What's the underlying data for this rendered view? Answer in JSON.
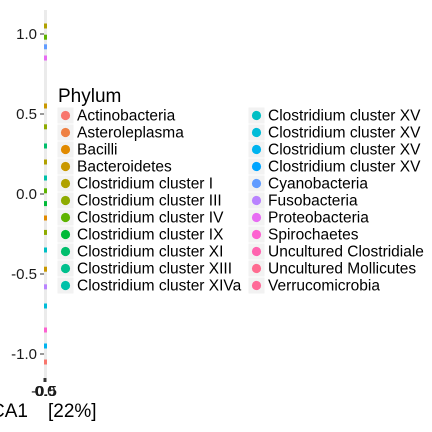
{
  "chart_data": {
    "type": "scatter",
    "x_axis": {
      "title_prefix": "CA1",
      "title_suffix": "[22%]",
      "tick_labels": [
        "-0.5",
        "0.0",
        "0.5"
      ]
    },
    "y_axis": {
      "title": "",
      "ylim": [
        -1.15,
        1.15
      ],
      "ticks": [
        {
          "value": 1.0,
          "label": "1.0"
        },
        {
          "value": 0.5,
          "label": "0.5"
        },
        {
          "value": 0.0,
          "label": "0.0"
        },
        {
          "value": -0.5,
          "label": "-0.5"
        },
        {
          "value": -1.0,
          "label": "-1.0"
        }
      ]
    },
    "legend": {
      "title": "Phylum",
      "position": "right",
      "entries": [
        {
          "label": "Actinobacteria",
          "color": "#F8766D"
        },
        {
          "label": "Asteroleplasma",
          "color": "#EE8043"
        },
        {
          "label": "Bacilli",
          "color": "#E18A00"
        },
        {
          "label": "Bacteroidetes",
          "color": "#C99800"
        },
        {
          "label": "Clostridium cluster I",
          "color": "#B0A100"
        },
        {
          "label": "Clostridium cluster III",
          "color": "#8EAB00"
        },
        {
          "label": "Clostridium cluster IV",
          "color": "#5EB300"
        },
        {
          "label": "Clostridium cluster IX",
          "color": "#00BA38"
        },
        {
          "label": "Clostridium cluster XI",
          "color": "#00BE6C"
        },
        {
          "label": "Clostridium cluster XIII",
          "color": "#00C08D"
        },
        {
          "label": "Clostridium cluster XIVa",
          "color": "#00C1A9"
        },
        {
          "label": "Clostridium cluster XV",
          "color": "#00BFC4"
        },
        {
          "label": "Clostridium cluster XV",
          "color": "#00BCD8"
        },
        {
          "label": "Clostridium cluster XV",
          "color": "#00B4EF"
        },
        {
          "label": "Clostridium cluster XV",
          "color": "#00A5FF"
        },
        {
          "label": "Cyanobacteria",
          "color": "#619CFF"
        },
        {
          "label": "Fusobacteria",
          "color": "#B983FF"
        },
        {
          "label": "Proteobacteria",
          "color": "#E76BF3"
        },
        {
          "label": "Spirochaetes",
          "color": "#FD61D1"
        },
        {
          "label": "Uncultured Clostridiale",
          "color": "#FF64B0"
        },
        {
          "label": "Uncultured Mollicutes",
          "color": "#FF6C91"
        },
        {
          "label": "Verrucomicrobia",
          "color": "#FF6A98"
        }
      ]
    },
    "points": [
      {
        "y": 1.05,
        "color": "#B0A100"
      },
      {
        "y": 0.98,
        "color": "#5EB300"
      },
      {
        "y": 0.92,
        "color": "#619CFF"
      },
      {
        "y": 0.85,
        "color": "#E76BF3"
      },
      {
        "y": 0.55,
        "color": "#C99800"
      },
      {
        "y": 0.42,
        "color": "#8EAB00"
      },
      {
        "y": 0.3,
        "color": "#00BE6C"
      },
      {
        "y": 0.2,
        "color": "#B0A100"
      },
      {
        "y": 0.1,
        "color": "#00C1A9"
      },
      {
        "y": 0.02,
        "color": "#5EB300"
      },
      {
        "y": -0.06,
        "color": "#00BA38"
      },
      {
        "y": -0.15,
        "color": "#E18A00"
      },
      {
        "y": -0.24,
        "color": "#8EAB00"
      },
      {
        "y": -0.35,
        "color": "#00BFC4"
      },
      {
        "y": -0.47,
        "color": "#C99800"
      },
      {
        "y": -0.58,
        "color": "#B983FF"
      },
      {
        "y": -0.7,
        "color": "#00BCD8"
      },
      {
        "y": -0.85,
        "color": "#FD61D1"
      },
      {
        "y": -0.95,
        "color": "#00B4EF"
      },
      {
        "y": -1.05,
        "color": "#F8766D"
      }
    ]
  }
}
